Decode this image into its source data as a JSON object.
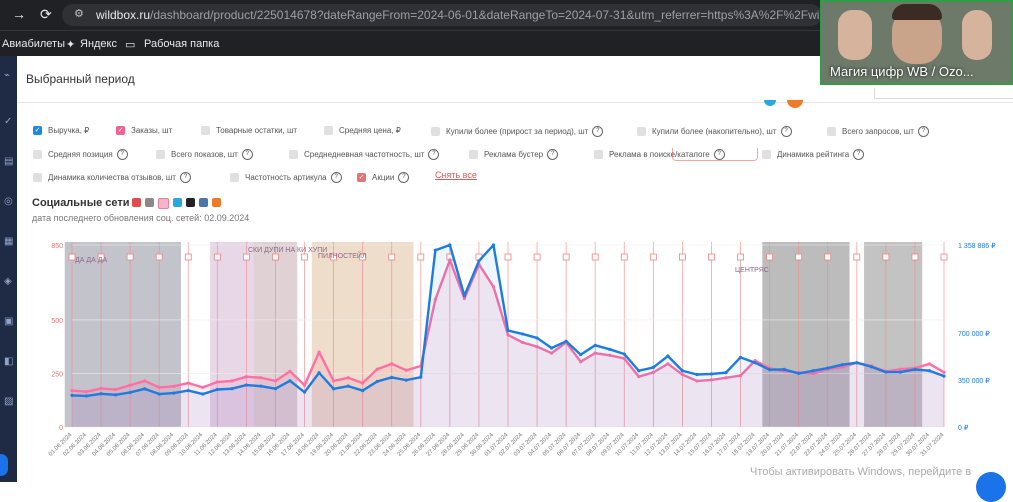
{
  "browser": {
    "url_domain": "wildbox.ru",
    "url_path": "/dashboard/product/225014678?dateRangeFrom=2024-06-01&dateRangeTo=2024-07-31&utm_referrer=https%3A%2F%2Fwildbox.ru%...",
    "bookmarks": [
      "Авиабилеты",
      "Яндекс",
      "Рабочая папка"
    ]
  },
  "webcam": {
    "caption": "Магия цифр WB / Ozo..."
  },
  "page": {
    "title": "Выбранный период"
  },
  "metrics": [
    {
      "label": "Выручка, ₽",
      "checked": true,
      "color": "#1e88e5",
      "help": false
    },
    {
      "label": "Заказы, шт",
      "checked": true,
      "color": "#f06292",
      "help": false
    },
    {
      "label": "Товарные остатки, шт",
      "checked": false,
      "help": false
    },
    {
      "label": "Средняя цена, ₽",
      "checked": false,
      "help": false
    },
    {
      "label": "Купили более (прирост за период), шт",
      "checked": false,
      "help": true
    },
    {
      "label": "Купили более (накопительно), шт",
      "checked": false,
      "help": true
    },
    {
      "label": "Всего запросов, шт",
      "checked": false,
      "help": true
    },
    {
      "label": "Средняя позиция",
      "checked": false,
      "help": true
    },
    {
      "label": "Всего показов, шт",
      "checked": false,
      "help": true
    },
    {
      "label": "Среднедневная частотность, шт",
      "checked": false,
      "help": true
    },
    {
      "label": "Реклама бустер",
      "checked": false,
      "help": true
    },
    {
      "label": "Реклама в поиске/каталоге",
      "checked": false,
      "help": true
    },
    {
      "label": "Динамика рейтинга",
      "checked": false,
      "help": true
    },
    {
      "label": "Динамика количества отзывов, шт",
      "checked": false,
      "help": true
    },
    {
      "label": "Частотность артикула",
      "checked": false,
      "help": true
    },
    {
      "label": "Акции",
      "checked": true,
      "color": "#e57373",
      "help": true
    }
  ],
  "reset_label": "Снять все",
  "social": {
    "title": "Социальные сети",
    "updated": "дата последнего обновления соц. сетей: 02.09.2024"
  },
  "chart_data": {
    "type": "line",
    "x": [
      "01.06.2024",
      "02.06.2024",
      "03.06.2024",
      "04.06.2024",
      "05.06.2024",
      "06.06.2024",
      "07.06.2024",
      "08.06.2024",
      "09.06.2024",
      "10.06.2024",
      "11.06.2024",
      "12.06.2024",
      "13.06.2024",
      "14.06.2024",
      "15.06.2024",
      "16.06.2024",
      "17.06.2024",
      "18.06.2024",
      "19.06.2024",
      "20.06.2024",
      "21.06.2024",
      "22.06.2024",
      "23.06.2024",
      "24.06.2024",
      "25.06.2024",
      "26.06.2024",
      "27.06.2024",
      "28.06.2024",
      "29.06.2024",
      "30.06.2024",
      "01.07.2024",
      "02.07.2024",
      "03.07.2024",
      "04.07.2024",
      "05.07.2024",
      "06.07.2024",
      "07.07.2024",
      "08.07.2024",
      "09.07.2024",
      "10.07.2024",
      "11.07.2024",
      "12.07.2024",
      "13.07.2024",
      "14.07.2024",
      "15.07.2024",
      "16.07.2024",
      "17.07.2024",
      "18.07.2024",
      "19.07.2024",
      "20.07.2024",
      "21.07.2024",
      "22.07.2024",
      "23.07.2024",
      "24.07.2024",
      "25.07.2024",
      "26.07.2024",
      "27.07.2024",
      "28.07.2024",
      "29.07.2024",
      "30.07.2024",
      "31.07.2024"
    ],
    "left_ticks": [
      "0",
      "250",
      "500",
      "850"
    ],
    "right_ticks": [
      "0 ₽",
      "350 000 ₽",
      "700 000 ₽",
      "1 358 886 ₽"
    ],
    "ylim_left": [
      0,
      850
    ],
    "ylim_right": [
      0,
      1358886
    ],
    "series": [
      {
        "name": "Заказы, шт",
        "axis": "left",
        "color": "#ff6fa3",
        "values": [
          170,
          165,
          180,
          175,
          195,
          215,
          185,
          190,
          205,
          185,
          210,
          215,
          235,
          230,
          215,
          260,
          195,
          350,
          215,
          230,
          205,
          270,
          295,
          265,
          285,
          595,
          780,
          600,
          760,
          655,
          430,
          395,
          375,
          345,
          395,
          305,
          345,
          335,
          320,
          235,
          255,
          295,
          245,
          215,
          220,
          230,
          240,
          310,
          275,
          260,
          255,
          250,
          270,
          280,
          300,
          285,
          260,
          270,
          275,
          295,
          255
        ]
      },
      {
        "name": "Выручка, ₽",
        "axis": "right",
        "color": "#1e7be0",
        "values": [
          236000,
          232000,
          248000,
          240000,
          258000,
          285000,
          246000,
          253000,
          272000,
          246000,
          280000,
          286000,
          313000,
          305000,
          286000,
          345000,
          260000,
          405000,
          285000,
          305000,
          272000,
          340000,
          370000,
          350000,
          372000,
          1320000,
          1358886,
          980000,
          1240000,
          1358886,
          720000,
          695000,
          665000,
          590000,
          640000,
          540000,
          610000,
          580000,
          545000,
          420000,
          445000,
          530000,
          420000,
          392000,
          396000,
          406000,
          520000,
          480000,
          428000,
          430000,
          400000,
          420000,
          440000,
          465000,
          480000,
          450000,
          410000,
          410000,
          430000,
          420000,
          380000
        ]
      }
    ],
    "shaded_ranges": [
      {
        "from": 0,
        "to": 7,
        "color": "#7a7a8e"
      },
      {
        "from": 10,
        "to": 12,
        "color": "#c9a6c9"
      },
      {
        "from": 13,
        "to": 15,
        "color": "#b89aa0"
      },
      {
        "from": 17,
        "to": 23,
        "color": "#d9b48a"
      },
      {
        "from": 48,
        "to": 53,
        "color": "#6a6a6a"
      },
      {
        "from": 55,
        "to": 58,
        "color": "#7a7a7a"
      }
    ],
    "annotations": [
      "ДА ДА ДА",
      "СКИ ДУПИ НА КИ ХУПИ",
      "ПИЛНОСТЕЙЛ",
      "ЦЕНТРЯС"
    ]
  },
  "watermark": "Чтобы активировать Windows, перейдите в"
}
